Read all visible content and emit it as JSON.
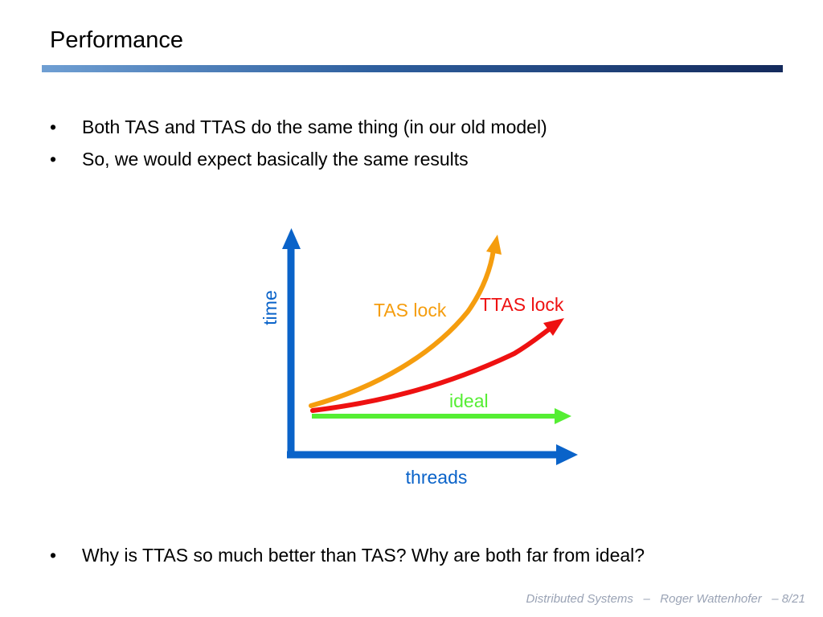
{
  "slide": {
    "title": "Performance",
    "bullets": [
      "Both TAS and TTAS do the same thing (in our old model)",
      "So, we would expect basically the same results",
      "Why is TTAS so much better than TAS? Why are both far from ideal?"
    ],
    "bullet_symbol": "•"
  },
  "diagram": {
    "y_axis_label": "time",
    "x_axis_label": "threads",
    "curves": {
      "tas": "TAS lock",
      "ttas": "TTAS lock",
      "ideal": "ideal"
    },
    "colors": {
      "axis": "#0a63c9",
      "tas": "#f59d0e",
      "ttas": "#ee1111",
      "ideal": "#55ee33"
    }
  },
  "footer": {
    "course": "Distributed Systems",
    "separator": "–",
    "author": "Roger Wattenhofer",
    "page_sep": "–",
    "page": "8/21"
  }
}
